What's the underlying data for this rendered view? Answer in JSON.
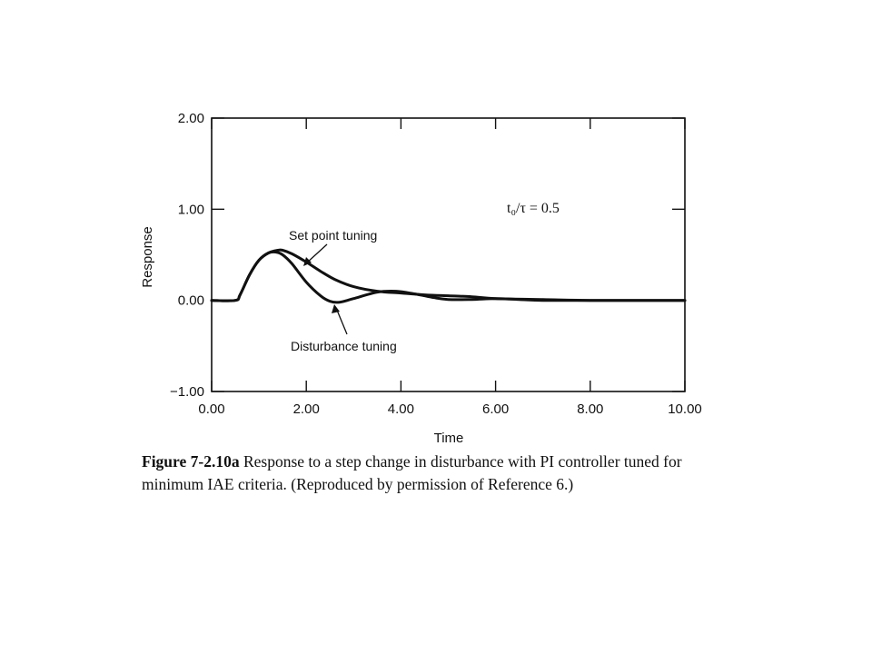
{
  "chart_data": {
    "type": "line",
    "xlabel": "Time",
    "ylabel": "Response",
    "xlim": [
      0,
      10
    ],
    "ylim": [
      -1,
      2
    ],
    "xticks": [
      "0.00",
      "2.00",
      "4.00",
      "6.00",
      "8.00",
      "10.00"
    ],
    "yticks": [
      "2.00",
      "1.00",
      "0.00",
      "−1.00"
    ],
    "grid": false,
    "parameter_label": "t₀/τ  = 0.5",
    "series": [
      {
        "name": "Set point tuning",
        "x": [
          0,
          0.5,
          0.6,
          0.8,
          1.0,
          1.2,
          1.4,
          1.5,
          1.7,
          2.0,
          2.3,
          2.6,
          3.0,
          3.5,
          4.0,
          4.5,
          5.0,
          5.5,
          6.0,
          7.0,
          8.0,
          10.0
        ],
        "y": [
          0,
          0,
          0.06,
          0.28,
          0.44,
          0.52,
          0.55,
          0.55,
          0.51,
          0.42,
          0.32,
          0.23,
          0.15,
          0.1,
          0.08,
          0.06,
          0.05,
          0.04,
          0.02,
          0.01,
          0,
          0
        ]
      },
      {
        "name": "Disturbance tuning",
        "x": [
          0,
          0.5,
          0.6,
          0.8,
          1.0,
          1.2,
          1.35,
          1.5,
          1.7,
          2.0,
          2.3,
          2.5,
          2.7,
          3.0,
          3.5,
          3.9,
          4.3,
          4.7,
          5.0,
          5.5,
          6.0,
          6.5,
          7.0,
          8.0,
          10.0
        ],
        "y": [
          0,
          0,
          0.06,
          0.28,
          0.44,
          0.52,
          0.53,
          0.5,
          0.4,
          0.2,
          0.05,
          -0.01,
          -0.02,
          0.02,
          0.09,
          0.1,
          0.07,
          0.03,
          0.01,
          0.01,
          0.02,
          0.01,
          0,
          0,
          0
        ]
      }
    ]
  },
  "caption": {
    "figure_label": "Figure 7-2.10a",
    "text": "Response to a step change in disturbance with PI controller tuned for minimum IAE criteria. (Reproduced by permission of Reference 6.)"
  }
}
